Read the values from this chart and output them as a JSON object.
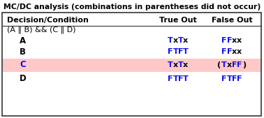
{
  "title": "MC/DC analysis (combinations in parentheses did not occur)",
  "bg_color": "#ffffff",
  "border_color": "#333333",
  "highlight_color": "#ffc8c8",
  "header_row": [
    "Decision/Condition",
    "True Out",
    "False Out"
  ],
  "expr_row": "(A ‖ B) && (C ‖ D)",
  "rows": [
    {
      "label": "A",
      "true_out": [
        "T",
        "x",
        "T",
        "x"
      ],
      "false_out": [
        "F",
        "F",
        "x",
        "x"
      ],
      "highlight": false
    },
    {
      "label": "B",
      "true_out": [
        "F",
        "T",
        "F",
        "T"
      ],
      "false_out": [
        "F",
        "F",
        "x",
        "x"
      ],
      "highlight": false
    },
    {
      "label": "C",
      "true_out": [
        "T",
        "x",
        "T",
        "x"
      ],
      "false_out": [
        "(",
        "T",
        "x",
        "F",
        "F",
        ")"
      ],
      "highlight": true
    },
    {
      "label": "D",
      "true_out": [
        "F",
        "T",
        "F",
        "T"
      ],
      "false_out": [
        "F",
        "T",
        "F",
        "F"
      ],
      "highlight": false
    }
  ],
  "black_color": "#000000",
  "blue_color": "#1010ee",
  "title_fontsize": 7.8,
  "header_fontsize": 8.0,
  "cell_fontsize": 8.0,
  "label_fontsize": 8.5
}
